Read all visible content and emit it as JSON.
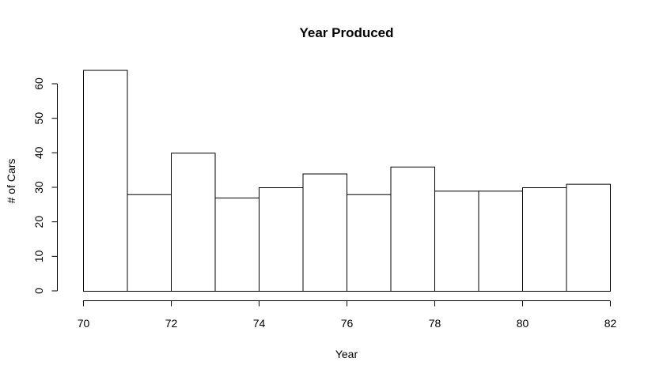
{
  "chart_data": {
    "type": "bar",
    "title": "Year Produced",
    "xlabel": "Year",
    "ylabel": "# of Cars",
    "bins": [
      [
        70,
        71
      ],
      [
        71,
        72
      ],
      [
        72,
        73
      ],
      [
        73,
        74
      ],
      [
        74,
        75
      ],
      [
        75,
        76
      ],
      [
        76,
        77
      ],
      [
        77,
        78
      ],
      [
        78,
        79
      ],
      [
        79,
        80
      ],
      [
        80,
        81
      ],
      [
        81,
        82
      ]
    ],
    "values": [
      64,
      28,
      40,
      27,
      30,
      34,
      28,
      36,
      29,
      29,
      30,
      31
    ],
    "xticks": [
      "70",
      "72",
      "74",
      "76",
      "78",
      "80",
      "82"
    ],
    "yticks": [
      "0",
      "10",
      "20",
      "30",
      "40",
      "50",
      "60"
    ],
    "xlim": [
      70,
      82
    ],
    "ylim": [
      0,
      64
    ],
    "grid": false,
    "legend": "none",
    "colors": {
      "bar_fill": "#ffffff",
      "bar_stroke": "#000000"
    }
  }
}
